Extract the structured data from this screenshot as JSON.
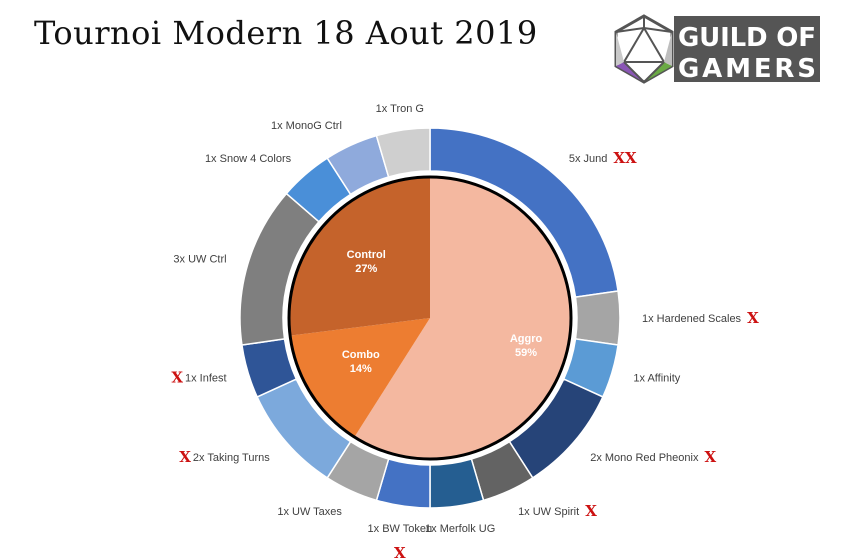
{
  "title": "Tournoi Modern 18 Aout 2019",
  "logo": {
    "line1": "GUILD OF",
    "line2": "GAMERS",
    "bg_color": "#555555",
    "text_color": "#ffffff"
  },
  "chart_data": {
    "type": "pie",
    "variant": "nested-donut",
    "title": "Tournoi Modern 18 Aout 2019",
    "inner": {
      "categories": [
        "Aggro",
        "Combo",
        "Control"
      ],
      "labels": [
        "Aggro\n59%",
        "Combo\n14%",
        "Control\n27%"
      ],
      "values": [
        59,
        14,
        27
      ],
      "colors": [
        "#f4b8a0",
        "#ed7d31",
        "#c5632b"
      ]
    },
    "outer": {
      "categories": [
        "5x Jund",
        "1x Hardened Scales",
        "1x Affinity",
        "2x Mono Red Pheonix",
        "1x UW Spirit",
        "1x Merfolk UG",
        "1x BW Token",
        "1x UW Taxes",
        "2x Taking Turns",
        "1x Infest",
        "3x UW Ctrl",
        "1x Snow 4 Colors",
        "1x MonoG Ctrl",
        "1x Tron G"
      ],
      "values": [
        5,
        1,
        1,
        2,
        1,
        1,
        1,
        1,
        2,
        1,
        3,
        1,
        1,
        1
      ],
      "colors": [
        "#4472c4",
        "#a5a5a5",
        "#5b9bd5",
        "#264478",
        "#636363",
        "#255e91",
        "#4472c4",
        "#a5a5a5",
        "#7ca9dc",
        "#2f5597",
        "#7f7f7f",
        "#4a8fd8",
        "#8faadc",
        "#cfcfcf"
      ],
      "marks": [
        "XX",
        "X",
        "",
        "X",
        "X",
        "",
        "X",
        "",
        "X",
        "X",
        "",
        "",
        "",
        ""
      ]
    }
  }
}
